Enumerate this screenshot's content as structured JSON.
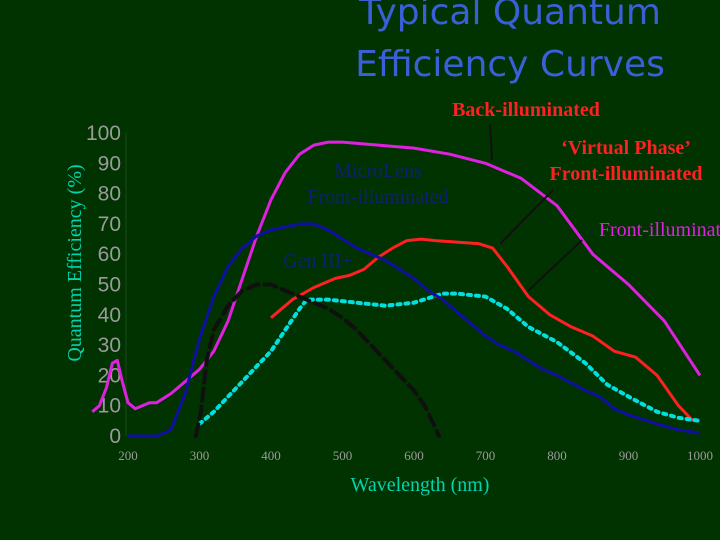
{
  "chart_data": {
    "type": "line",
    "title_lines": [
      "Typical Quantum",
      "Efficiency Curves"
    ],
    "xlabel": "Wavelength (nm)",
    "ylabel": "Quantum Efficiency (%)",
    "xlim": [
      150,
      1000
    ],
    "ylim": [
      0,
      100
    ],
    "x_ticks": [
      200,
      300,
      400,
      500,
      600,
      700,
      800,
      900,
      1000
    ],
    "y_ticks": [
      0,
      10,
      20,
      30,
      40,
      50,
      60,
      70,
      80,
      90,
      100
    ],
    "grid": false,
    "series": [
      {
        "key": "back_illuminated",
        "color": "#e020e0",
        "style": "solid",
        "points": [
          [
            150,
            8
          ],
          [
            160,
            10
          ],
          [
            170,
            16
          ],
          [
            178,
            24
          ],
          [
            185,
            25
          ],
          [
            192,
            18
          ],
          [
            200,
            11
          ],
          [
            210,
            9
          ],
          [
            220,
            10
          ],
          [
            230,
            11
          ],
          [
            240,
            11
          ],
          [
            260,
            14
          ],
          [
            280,
            18
          ],
          [
            300,
            22
          ],
          [
            320,
            28
          ],
          [
            340,
            38
          ],
          [
            360,
            52
          ],
          [
            380,
            66
          ],
          [
            400,
            78
          ],
          [
            420,
            87
          ],
          [
            440,
            93
          ],
          [
            460,
            96
          ],
          [
            480,
            97
          ],
          [
            500,
            97
          ],
          [
            550,
            96
          ],
          [
            600,
            95
          ],
          [
            650,
            93
          ],
          [
            700,
            90
          ],
          [
            750,
            85
          ],
          [
            800,
            76
          ],
          [
            850,
            60
          ],
          [
            900,
            50
          ],
          [
            950,
            38
          ],
          [
            1000,
            20
          ]
        ]
      },
      {
        "key": "virtual_phase",
        "color": "#ff2020",
        "style": "solid",
        "points": [
          [
            400,
            39
          ],
          [
            430,
            45
          ],
          [
            460,
            49
          ],
          [
            490,
            52
          ],
          [
            510,
            53
          ],
          [
            530,
            55
          ],
          [
            550,
            59
          ],
          [
            570,
            62
          ],
          [
            590,
            64.5
          ],
          [
            610,
            65
          ],
          [
            630,
            64.5
          ],
          [
            660,
            64
          ],
          [
            690,
            63.5
          ],
          [
            710,
            62
          ],
          [
            730,
            56
          ],
          [
            760,
            46
          ],
          [
            790,
            40
          ],
          [
            820,
            36
          ],
          [
            850,
            33
          ],
          [
            880,
            28
          ],
          [
            910,
            26
          ],
          [
            940,
            20
          ],
          [
            970,
            10
          ],
          [
            990,
            5
          ]
        ]
      },
      {
        "key": "front_illuminated",
        "color": "#00e0e0",
        "style": "dotted",
        "points": [
          [
            300,
            4
          ],
          [
            320,
            8
          ],
          [
            340,
            13
          ],
          [
            360,
            18
          ],
          [
            380,
            23
          ],
          [
            400,
            28
          ],
          [
            420,
            35
          ],
          [
            440,
            42
          ],
          [
            450,
            45
          ],
          [
            480,
            45
          ],
          [
            520,
            44
          ],
          [
            560,
            43
          ],
          [
            600,
            44
          ],
          [
            640,
            47
          ],
          [
            660,
            47
          ],
          [
            700,
            46
          ],
          [
            730,
            42
          ],
          [
            760,
            36
          ],
          [
            800,
            31
          ],
          [
            840,
            24
          ],
          [
            870,
            17
          ],
          [
            900,
            13
          ],
          [
            940,
            8
          ],
          [
            970,
            6
          ],
          [
            1000,
            5
          ]
        ]
      },
      {
        "key": "microlens",
        "color": "#1010a0",
        "style": "solid",
        "points": [
          [
            200,
            0
          ],
          [
            240,
            0
          ],
          [
            260,
            2
          ],
          [
            280,
            14
          ],
          [
            300,
            32
          ],
          [
            320,
            46
          ],
          [
            340,
            56
          ],
          [
            360,
            62
          ],
          [
            380,
            66
          ],
          [
            400,
            68
          ],
          [
            420,
            69
          ],
          [
            440,
            70
          ],
          [
            460,
            70
          ],
          [
            480,
            68
          ],
          [
            500,
            65
          ],
          [
            520,
            62
          ],
          [
            540,
            60
          ],
          [
            560,
            58
          ],
          [
            580,
            55
          ],
          [
            600,
            52
          ],
          [
            620,
            48
          ],
          [
            640,
            45
          ],
          [
            660,
            41
          ],
          [
            680,
            37
          ],
          [
            700,
            33
          ],
          [
            720,
            30
          ],
          [
            740,
            28
          ],
          [
            760,
            25
          ],
          [
            780,
            22
          ],
          [
            800,
            20
          ],
          [
            840,
            15
          ],
          [
            860,
            13
          ],
          [
            880,
            9
          ],
          [
            900,
            7
          ],
          [
            940,
            4
          ],
          [
            970,
            2
          ],
          [
            1000,
            1
          ]
        ]
      },
      {
        "key": "gen_iii",
        "color": "#101010",
        "style": "dashed",
        "points": [
          [
            295,
            0
          ],
          [
            302,
            8
          ],
          [
            310,
            25
          ],
          [
            320,
            35
          ],
          [
            340,
            43
          ],
          [
            360,
            48
          ],
          [
            380,
            50
          ],
          [
            400,
            50
          ],
          [
            420,
            48
          ],
          [
            440,
            46
          ],
          [
            460,
            44
          ],
          [
            480,
            42
          ],
          [
            500,
            39
          ],
          [
            520,
            35
          ],
          [
            540,
            30
          ],
          [
            560,
            25
          ],
          [
            580,
            20
          ],
          [
            600,
            15
          ],
          [
            615,
            10
          ],
          [
            625,
            5
          ],
          [
            635,
            0
          ]
        ]
      }
    ],
    "annotations": [
      {
        "key": "back",
        "lines": [
          "Back-illuminated"
        ],
        "color_class": "annot-red"
      },
      {
        "key": "virtual",
        "lines": [
          "‘Virtual Phase’",
          "Front-illuminated"
        ],
        "color_class": "annot-red"
      },
      {
        "key": "front",
        "lines": [
          "Front-illuminat"
        ],
        "color_class": "annot-magenta"
      },
      {
        "key": "micro",
        "lines": [
          "MicroLens",
          "Front-illuminated"
        ],
        "color_class": "annot-navy"
      },
      {
        "key": "gen",
        "lines": [
          "Gen III+"
        ],
        "color_class": "annot-navy"
      }
    ]
  }
}
